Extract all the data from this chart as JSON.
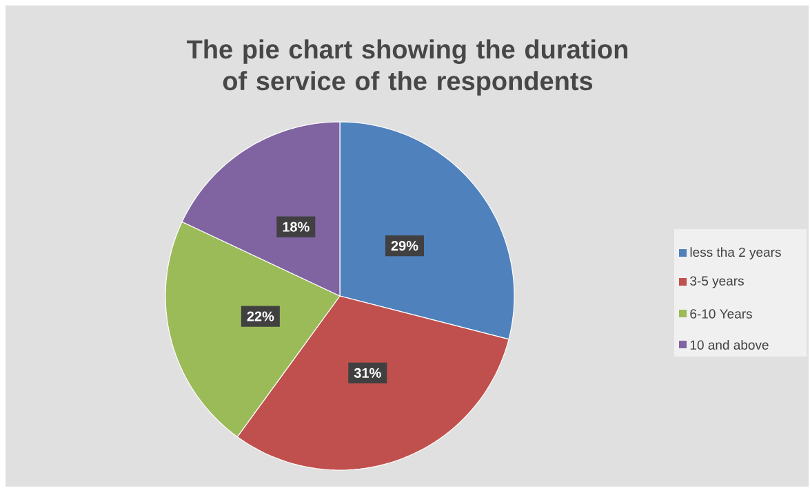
{
  "chart_data": {
    "type": "pie",
    "title": "The pie chart showing the duration of service of the respondents",
    "categories": [
      "less tha 2 years",
      "3-5 years",
      "6-10 Years",
      "10 and above"
    ],
    "values": [
      29,
      31,
      22,
      18
    ],
    "value_labels": [
      "29%",
      "31%",
      "22%",
      "18%"
    ],
    "colors": [
      "#4f81bd",
      "#c0504d",
      "#9bbb59",
      "#8064a2"
    ],
    "legend": "right"
  }
}
